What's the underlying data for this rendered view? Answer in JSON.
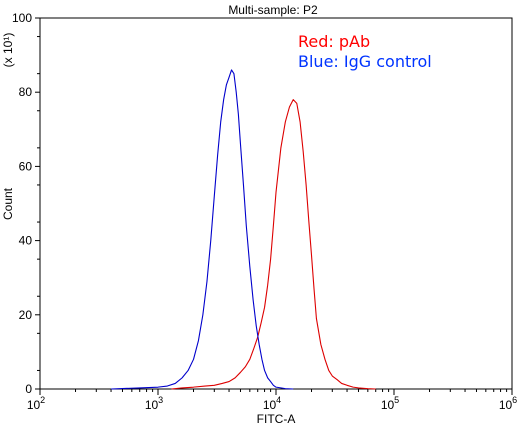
{
  "chart_data": {
    "type": "line",
    "title": "Multi-sample: P2",
    "xlabel": "FITC-A",
    "ylabel": "Count",
    "y_multiplier_label": "(x 10¹)",
    "x_scale": "log",
    "xlim": [
      100,
      1000000
    ],
    "ylim": [
      0,
      100
    ],
    "x_ticks": [
      {
        "value": 100,
        "base": "10",
        "exp": "2"
      },
      {
        "value": 1000,
        "base": "10",
        "exp": "3"
      },
      {
        "value": 10000,
        "base": "10",
        "exp": "4"
      },
      {
        "value": 100000,
        "base": "10",
        "exp": "5"
      },
      {
        "value": 1000000,
        "base": "10",
        "exp": "6"
      }
    ],
    "y_ticks": [
      0,
      20,
      40,
      60,
      80,
      100
    ],
    "grid": false,
    "legend_position": "top-right",
    "legend": [
      {
        "text": "Red: pAb",
        "color": "#ff0000"
      },
      {
        "text": "Blue: IgG control",
        "color": "#0033ff"
      }
    ],
    "series": [
      {
        "name": "Red: pAb",
        "color": "#dd0000",
        "x": [
          1300,
          1600,
          2000,
          2500,
          3000,
          3500,
          4000,
          4500,
          5000,
          5500,
          6000,
          6500,
          7000,
          7500,
          8000,
          8500,
          9000,
          9500,
          10000,
          11000,
          12000,
          13000,
          14000,
          15000,
          16000,
          17000,
          18000,
          19000,
          20000,
          21000,
          22000,
          24000,
          26000,
          28000,
          30000,
          33000,
          36000,
          40000,
          45000,
          50000,
          60000,
          70000
        ],
        "y": [
          0,
          0.3,
          0.5,
          0.8,
          1,
          1.5,
          2,
          3,
          4.5,
          6,
          8,
          11,
          14,
          18,
          22,
          28,
          35,
          44,
          53,
          65,
          72,
          76,
          78,
          77,
          72,
          64,
          55,
          45,
          36,
          27,
          19,
          12,
          8,
          5,
          3.5,
          2.5,
          1.5,
          1,
          0.5,
          0.3,
          0.1,
          0
        ]
      },
      {
        "name": "Blue: IgG control",
        "color": "#0000cc",
        "x": [
          400,
          700,
          1000,
          1200,
          1400,
          1600,
          1800,
          2000,
          2200,
          2400,
          2600,
          2800,
          3000,
          3200,
          3400,
          3600,
          3800,
          4000,
          4200,
          4400,
          4600,
          4800,
          5000,
          5300,
          5600,
          6000,
          6400,
          6800,
          7200,
          7600,
          8000,
          8500,
          9000,
          9500,
          10000,
          11000,
          12000,
          14000
        ],
        "y": [
          0,
          0.3,
          0.5,
          0.8,
          1.5,
          3,
          5,
          8,
          13,
          20,
          29,
          40,
          52,
          63,
          72,
          78,
          82,
          84,
          86,
          85,
          80,
          74,
          66,
          55,
          44,
          33,
          24,
          17,
          12,
          8,
          5,
          3,
          2,
          1,
          0.5,
          0.3,
          0.1,
          0
        ]
      }
    ]
  }
}
